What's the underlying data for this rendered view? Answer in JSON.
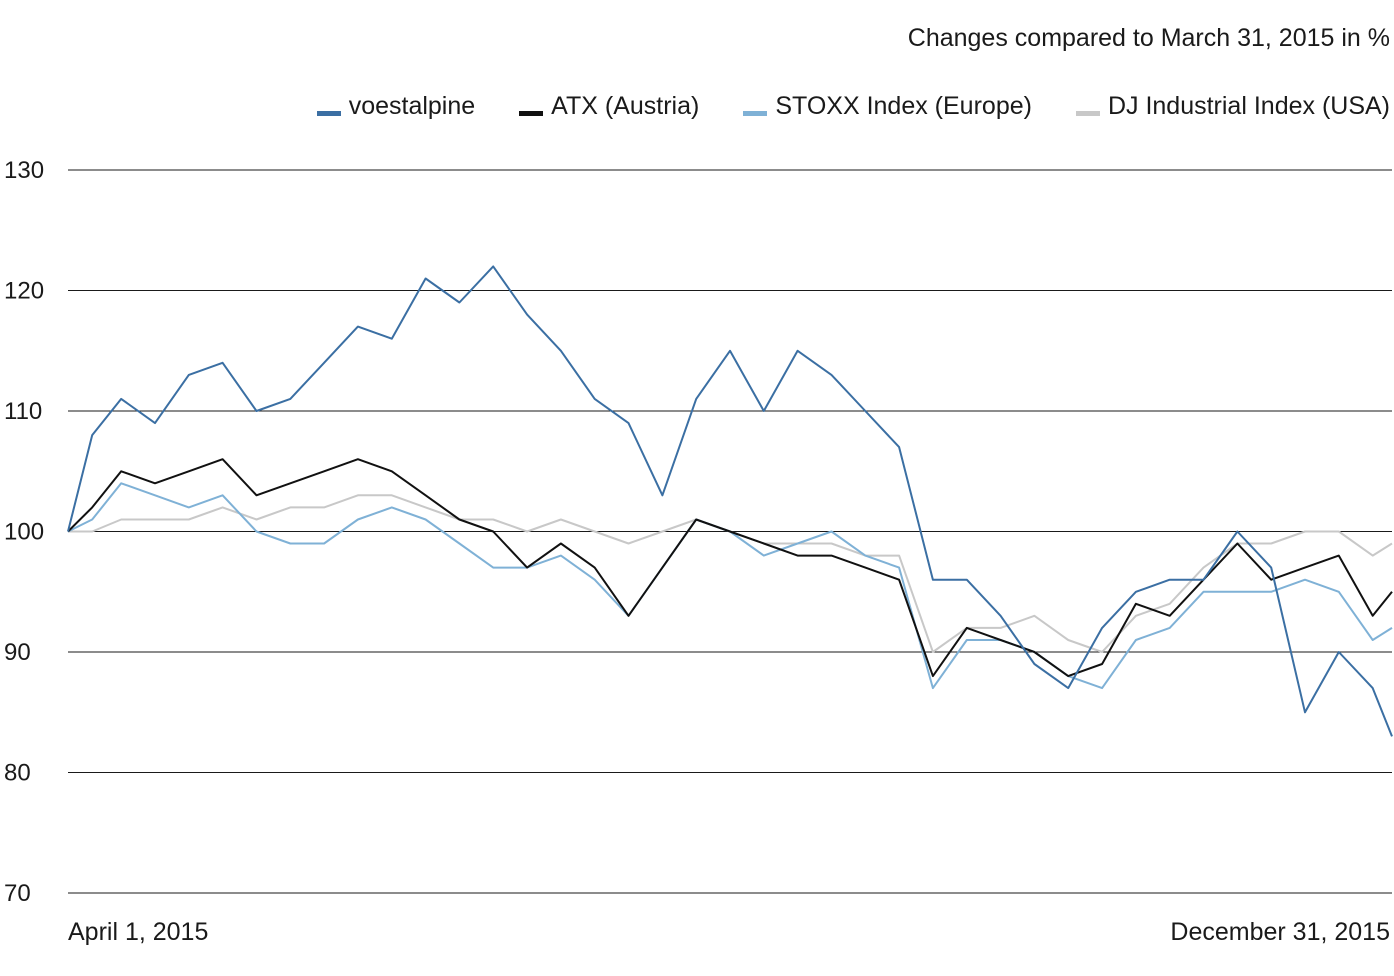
{
  "chart_data": {
    "type": "line",
    "subtitle": "Changes compared to March 31, 2015 in %",
    "ylim": [
      70,
      130
    ],
    "y_ticks": [
      130,
      120,
      110,
      100,
      90,
      80,
      70
    ],
    "x_start_label": "April 1, 2015",
    "x_end_label": "December 31, 2015",
    "x": [
      "2015-04-01",
      "2015-04-06",
      "2015-04-12",
      "2015-04-19",
      "2015-04-26",
      "2015-05-03",
      "2015-05-10",
      "2015-05-17",
      "2015-05-24",
      "2015-05-31",
      "2015-06-07",
      "2015-06-14",
      "2015-06-21",
      "2015-06-28",
      "2015-07-05",
      "2015-07-12",
      "2015-07-19",
      "2015-07-26",
      "2015-08-02",
      "2015-08-09",
      "2015-08-16",
      "2015-08-23",
      "2015-08-30",
      "2015-09-06",
      "2015-09-13",
      "2015-09-20",
      "2015-09-27",
      "2015-10-04",
      "2015-10-11",
      "2015-10-18",
      "2015-10-25",
      "2015-11-01",
      "2015-11-08",
      "2015-11-15",
      "2015-11-22",
      "2015-11-29",
      "2015-12-06",
      "2015-12-13",
      "2015-12-20",
      "2015-12-27",
      "2015-12-31"
    ],
    "grid": true,
    "legend_position": "top-right",
    "series": [
      {
        "name": "voestalpine",
        "color": "#3b6fa3",
        "values": [
          100,
          108,
          111,
          109,
          113,
          114,
          110,
          111,
          114,
          117,
          116,
          121,
          119,
          122,
          118,
          115,
          111,
          109,
          103,
          111,
          115,
          110,
          115,
          113,
          110,
          107,
          96,
          96,
          93,
          89,
          87,
          92,
          95,
          96,
          96,
          100,
          97,
          85,
          90,
          87,
          83
        ]
      },
      {
        "name": "ATX (Austria)",
        "color": "#111111",
        "values": [
          100,
          102,
          105,
          104,
          105,
          106,
          103,
          104,
          105,
          106,
          105,
          103,
          101,
          100,
          97,
          99,
          97,
          93,
          97,
          101,
          100,
          99,
          98,
          98,
          97,
          96,
          88,
          92,
          91,
          90,
          88,
          89,
          94,
          93,
          96,
          99,
          96,
          97,
          98,
          93,
          95
        ]
      },
      {
        "name": "STOXX Index (Europe)",
        "color": "#7fb1d6",
        "values": [
          100,
          101,
          104,
          103,
          102,
          103,
          100,
          99,
          99,
          101,
          102,
          101,
          99,
          97,
          97,
          98,
          96,
          93,
          97,
          101,
          100,
          98,
          99,
          100,
          98,
          97,
          87,
          91,
          91,
          90,
          88,
          87,
          91,
          92,
          95,
          95,
          95,
          96,
          95,
          91,
          92
        ]
      },
      {
        "name": "DJ Industrial Index (USA)",
        "color": "#c8c8c8",
        "values": [
          100,
          100,
          101,
          101,
          101,
          102,
          101,
          102,
          102,
          103,
          103,
          102,
          101,
          101,
          100,
          101,
          100,
          99,
          100,
          101,
          100,
          99,
          99,
          99,
          98,
          98,
          90,
          92,
          92,
          93,
          91,
          90,
          93,
          94,
          97,
          99,
          99,
          100,
          100,
          98,
          99
        ]
      }
    ]
  }
}
